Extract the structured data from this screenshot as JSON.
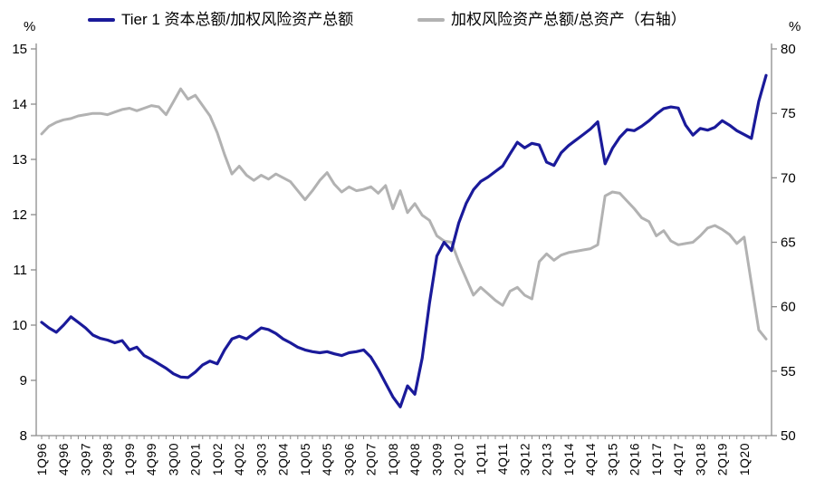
{
  "chart_data": {
    "type": "line",
    "title": "",
    "grid": false,
    "legend_position": "top",
    "left_axis": {
      "unit": "%",
      "min": 8,
      "max": 15,
      "step": 1
    },
    "right_axis": {
      "unit": "%",
      "min": 50,
      "max": 80,
      "step": 5
    },
    "x_tick_labels": [
      "1Q96",
      "4Q96",
      "3Q97",
      "2Q98",
      "1Q99",
      "4Q99",
      "3Q00",
      "2Q01",
      "1Q02",
      "4Q02",
      "3Q03",
      "2Q04",
      "1Q05",
      "4Q05",
      "3Q06",
      "2Q07",
      "1Q08",
      "4Q08",
      "3Q09",
      "2Q10",
      "1Q11",
      "4Q11",
      "3Q12",
      "2Q13",
      "1Q14",
      "4Q14",
      "3Q15",
      "2Q16",
      "1Q17",
      "4Q17",
      "3Q18",
      "2Q19",
      "1Q20"
    ],
    "x_tick_stride": 3,
    "categories": [
      "1Q96",
      "2Q96",
      "3Q96",
      "4Q96",
      "1Q97",
      "2Q97",
      "3Q97",
      "4Q97",
      "1Q98",
      "2Q98",
      "3Q98",
      "4Q98",
      "1Q99",
      "2Q99",
      "3Q99",
      "4Q99",
      "1Q00",
      "2Q00",
      "3Q00",
      "4Q00",
      "1Q01",
      "2Q01",
      "3Q01",
      "4Q01",
      "1Q02",
      "2Q02",
      "3Q02",
      "4Q02",
      "1Q03",
      "2Q03",
      "3Q03",
      "4Q03",
      "1Q04",
      "2Q04",
      "3Q04",
      "4Q04",
      "1Q05",
      "2Q05",
      "3Q05",
      "4Q05",
      "1Q06",
      "2Q06",
      "3Q06",
      "4Q06",
      "1Q07",
      "2Q07",
      "3Q07",
      "4Q07",
      "1Q08",
      "2Q08",
      "3Q08",
      "4Q08",
      "1Q09",
      "2Q09",
      "3Q09",
      "4Q09",
      "1Q10",
      "2Q10",
      "3Q10",
      "4Q10",
      "1Q11",
      "2Q11",
      "3Q11",
      "4Q11",
      "1Q12",
      "2Q12",
      "3Q12",
      "4Q12",
      "1Q13",
      "2Q13",
      "3Q13",
      "4Q13",
      "1Q14",
      "2Q14",
      "3Q14",
      "4Q14",
      "1Q15",
      "2Q15",
      "3Q15",
      "4Q15",
      "1Q16",
      "2Q16",
      "3Q16",
      "4Q16",
      "1Q17",
      "2Q17",
      "3Q17",
      "4Q17",
      "1Q18",
      "2Q18",
      "3Q18",
      "4Q18",
      "1Q19",
      "2Q19",
      "3Q19",
      "4Q19",
      "1Q20",
      "2Q20",
      "3Q20",
      "4Q20"
    ],
    "series": [
      {
        "name": "Tier 1 资本总额/加权风险资产总额",
        "axis": "left",
        "color": "#1a1a9a",
        "width": 3.2,
        "values": [
          10.05,
          9.95,
          9.87,
          10.0,
          10.15,
          10.05,
          9.95,
          9.82,
          9.76,
          9.73,
          9.68,
          9.72,
          9.55,
          9.6,
          9.45,
          9.38,
          9.3,
          9.22,
          9.12,
          9.06,
          9.05,
          9.15,
          9.28,
          9.35,
          9.3,
          9.55,
          9.75,
          9.8,
          9.75,
          9.85,
          9.95,
          9.92,
          9.85,
          9.75,
          9.68,
          9.6,
          9.55,
          9.52,
          9.5,
          9.52,
          9.48,
          9.45,
          9.5,
          9.52,
          9.55,
          9.42,
          9.2,
          8.95,
          8.7,
          8.52,
          8.9,
          8.75,
          9.4,
          10.4,
          11.25,
          11.5,
          11.35,
          11.85,
          12.2,
          12.45,
          12.6,
          12.68,
          12.78,
          12.88,
          13.1,
          13.31,
          13.21,
          13.29,
          13.26,
          12.95,
          12.89,
          13.12,
          13.25,
          13.35,
          13.45,
          13.55,
          13.68,
          12.92,
          13.2,
          13.4,
          13.54,
          13.52,
          13.6,
          13.7,
          13.82,
          13.92,
          13.95,
          13.93,
          13.62,
          13.44,
          13.56,
          13.53,
          13.58,
          13.7,
          13.62,
          13.52,
          13.45,
          13.38,
          14.05,
          14.52
        ]
      },
      {
        "name": "加权风险资产总额/总资产（右轴）",
        "axis": "right",
        "color": "#b2b2b2",
        "width": 3.0,
        "values": [
          73.4,
          74.0,
          74.3,
          74.5,
          74.6,
          74.8,
          74.9,
          75.0,
          75.0,
          74.9,
          75.1,
          75.3,
          75.4,
          75.2,
          75.4,
          75.6,
          75.5,
          74.9,
          75.9,
          76.9,
          76.1,
          76.4,
          75.6,
          74.8,
          73.5,
          71.8,
          70.3,
          70.9,
          70.2,
          69.8,
          70.2,
          69.9,
          70.3,
          70.0,
          69.7,
          69.0,
          68.3,
          69.0,
          69.8,
          70.4,
          69.5,
          68.9,
          69.3,
          69.0,
          69.1,
          69.3,
          68.8,
          69.4,
          67.6,
          69.0,
          67.3,
          68.0,
          67.1,
          66.7,
          65.5,
          65.1,
          65.0,
          63.5,
          62.2,
          60.9,
          61.5,
          61.0,
          60.5,
          60.1,
          61.2,
          61.5,
          60.9,
          60.6,
          63.5,
          64.1,
          63.6,
          64.0,
          64.2,
          64.3,
          64.4,
          64.5,
          64.8,
          68.6,
          68.9,
          68.8,
          68.2,
          67.6,
          66.9,
          66.6,
          65.5,
          65.9,
          65.1,
          64.8,
          64.9,
          65.0,
          65.5,
          66.1,
          66.3,
          66.0,
          65.6,
          64.9,
          65.4,
          61.8,
          58.2,
          57.5
        ]
      }
    ]
  }
}
